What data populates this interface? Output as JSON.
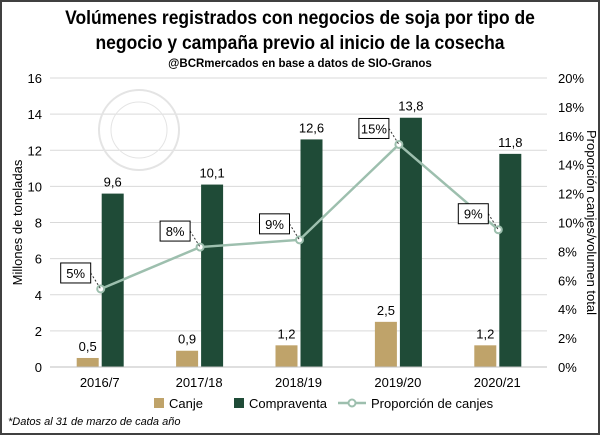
{
  "chart_data": {
    "type": "bar",
    "title": "Volúmenes registrados con negocios de soja por tipo de negocio y campaña previo al inicio de la cosecha",
    "title_line1": "Volúmenes registrados con negocios de soja por tipo de",
    "title_line2": "negocio y campaña previo al inicio de la cosecha",
    "subtitle": "@BCRmercados en base a datos de SIO-Granos",
    "ylabel": "Millones de toneladas",
    "y2label": "Proporción canjes/volumen total",
    "ylim": [
      0,
      16
    ],
    "y2lim": [
      0,
      20
    ],
    "yticks": [
      "0",
      "2",
      "4",
      "6",
      "8",
      "10",
      "12",
      "14",
      "16"
    ],
    "y2ticks": [
      "0%",
      "2%",
      "4%",
      "6%",
      "8%",
      "10%",
      "12%",
      "14%",
      "16%",
      "18%",
      "20%"
    ],
    "categories": [
      "2016/7",
      "2017/18",
      "2018/19",
      "2019/20",
      "2020/21"
    ],
    "series": [
      {
        "name": "Canje",
        "type": "bar",
        "color": "#BFA36A",
        "values": [
          0.5,
          0.9,
          1.2,
          2.5,
          1.2
        ],
        "labels": [
          "0,5",
          "0,9",
          "1,2",
          "2,5",
          "1,2"
        ]
      },
      {
        "name": "Compraventa",
        "type": "bar",
        "color": "#1F4B37",
        "values": [
          9.6,
          10.1,
          12.6,
          13.8,
          11.8
        ],
        "labels": [
          "9,6",
          "10,1",
          "12,6",
          "13,8",
          "11,8"
        ]
      },
      {
        "name": "Proporción de canjes",
        "type": "line",
        "axis": "right",
        "color": "#9DBFAE",
        "values": [
          5.4,
          8.3,
          8.8,
          15.4,
          9.5
        ],
        "labels": [
          "5%",
          "8%",
          "9%",
          "15%",
          "9%"
        ]
      }
    ],
    "grid": true,
    "legend_position": "bottom",
    "footnote": "*Datos al 31 de marzo de cada año"
  }
}
